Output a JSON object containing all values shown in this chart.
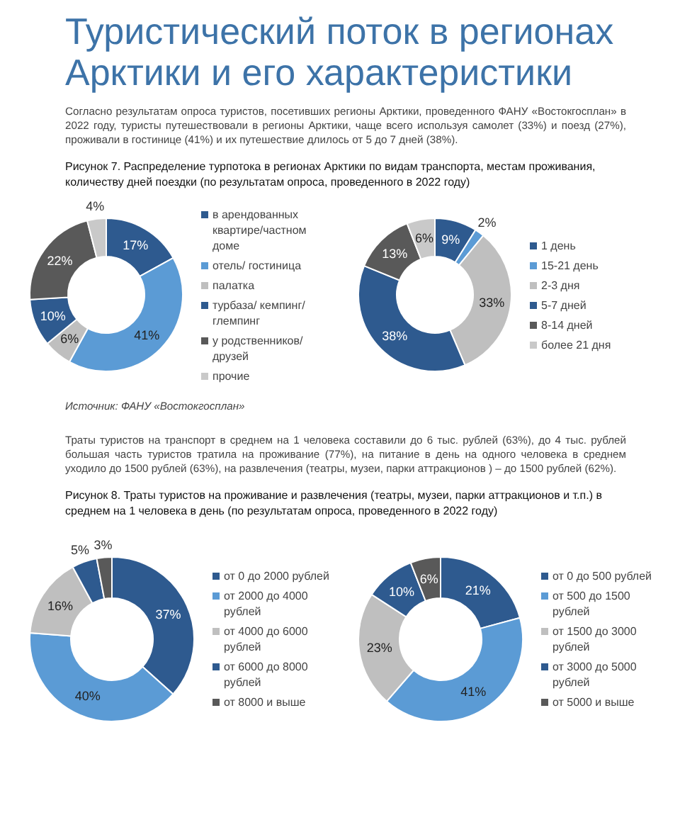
{
  "chart_data": [
    {
      "type": "donut",
      "title": "Туристический поток в регионах Арктики и его характеристики",
      "subtitle": "Согласно результатам опроса туристов, посетивших регионы Арктики, проведенного ФАНУ «Востокгосплан» в 2022 году, туристы путешествовали в регионы Арктики, чаще всего используя самолет (33%) и поезд (27%), проживали в гостинице (41%) и их путешествие длилось от 5 до 7 дней (38%).",
      "annotations": [
        "Рисунок 7. Распределение турпотока в регионах Арктики по видам транспорта, местам проживания, количеству дней поездки (по результатам опроса, проведенного в 2022 году)",
        "Источник: ФАНУ «Востокгосплан»"
      ],
      "categories": [
        "в арендованных квартире/частном доме",
        "отель/ гостиница",
        "палатка",
        "турбаза/ кемпинг/ глемпинг",
        "у родственников/ друзей",
        "прочие"
      ],
      "values": [
        17,
        41,
        6,
        10,
        22,
        4
      ],
      "value_labels": [
        "17%",
        "41%",
        "6%",
        "10%",
        "22%",
        "4%"
      ],
      "colors": [
        "#2e5a8f",
        "#5b9bd5",
        "#bfbfbf",
        "#2e5a8f",
        "#595959",
        "#c9c9c9"
      ],
      "legend": "right"
    },
    {
      "type": "donut",
      "categories": [
        "1 день",
        "15-21 день",
        "2-3 дня",
        "5-7 дней",
        "8-14 дней",
        "более 21 дня"
      ],
      "values": [
        9,
        2,
        33,
        38,
        13,
        6
      ],
      "value_labels": [
        "9%",
        "2%",
        "33%",
        "38%",
        "13%",
        "6%"
      ],
      "colors": [
        "#2e5a8f",
        "#5b9bd5",
        "#bfbfbf",
        "#2e5a8f",
        "#595959",
        "#c9c9c9"
      ],
      "legend": "right"
    },
    {
      "type": "donut",
      "subtitle": "Траты туристов на транспорт в среднем на 1 человека составили до 6 тыс. рублей (63%), до 4 тыс. рублей большая часть туристов тратила на проживание (77%), на питание в день на одного человека в среднем уходило до 1500 рублей (63%), на развлечения (театры, музеи, парки аттракционов ) – до 1500 рублей (62%).",
      "annotations": [
        "Рисунок 8. Траты туристов на проживание и развлечения (театры, музеи, парки аттракционов и т.п.) в среднем на 1 человека в день (по результатам опроса, проведенного в 2022 году)"
      ],
      "categories": [
        "от 0 до 2000 рублей",
        "от 2000 до 4000 рублей",
        "от 4000 до 6000 рублей",
        "от 6000 до 8000 рублей",
        "от 8000 и выше"
      ],
      "values": [
        37,
        40,
        16,
        5,
        3
      ],
      "value_labels": [
        "37%",
        "40%",
        "16%",
        "5%",
        "3%"
      ],
      "colors": [
        "#2e5a8f",
        "#5b9bd5",
        "#bfbfbf",
        "#2e5a8f",
        "#595959"
      ],
      "legend": "right"
    },
    {
      "type": "donut",
      "categories": [
        "от 0 до 500 рублей",
        "от 500 до 1500 рублей",
        "от 1500 до 3000 рублей",
        "от 3000 до 5000 рублей",
        "от 5000 и выше"
      ],
      "values": [
        21,
        41,
        23,
        10,
        6
      ],
      "value_labels": [
        "21%",
        "41%",
        "23%",
        "10%",
        "6%"
      ],
      "colors": [
        "#2e5a8f",
        "#5b9bd5",
        "#bfbfbf",
        "#2e5a8f",
        "#595959"
      ],
      "legend": "right"
    }
  ]
}
